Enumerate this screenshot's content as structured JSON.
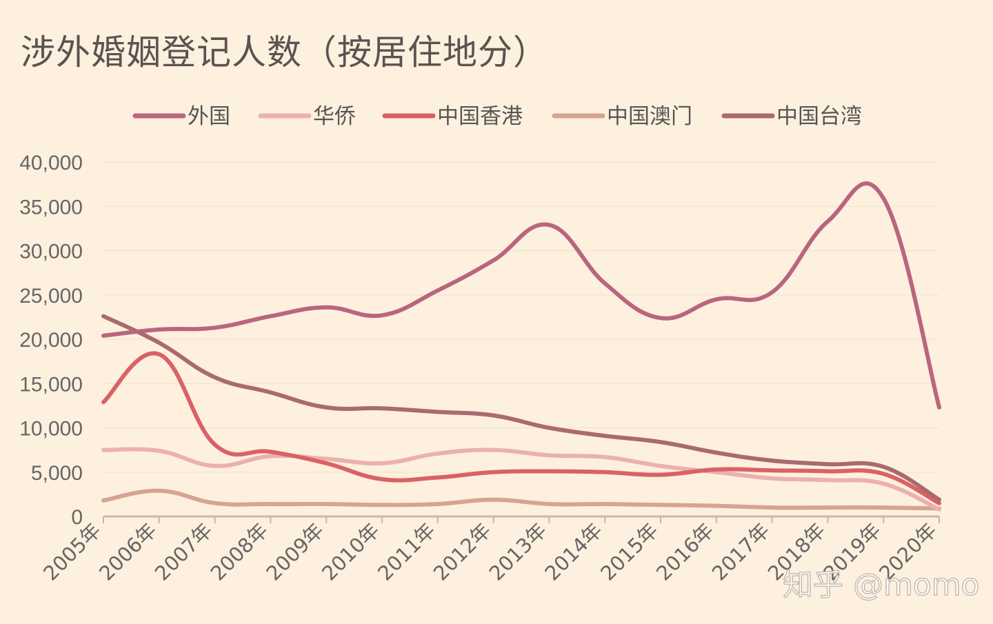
{
  "title": "涉外婚姻登记人数（按居住地分）",
  "watermark": "知乎 @momo",
  "chart_data": {
    "type": "line",
    "categories": [
      "2005年",
      "2006年",
      "2007年",
      "2008年",
      "2009年",
      "2010年",
      "2011年",
      "2012年",
      "2013年",
      "2014年",
      "2015年",
      "2016年",
      "2017年",
      "2018年",
      "2019年",
      "2020年"
    ],
    "ylim": [
      0,
      40000
    ],
    "yticks": [
      0,
      5000,
      10000,
      15000,
      20000,
      25000,
      30000,
      35000,
      40000
    ],
    "ytick_labels": [
      "0",
      "5,000",
      "10,000",
      "15,000",
      "20,000",
      "25,000",
      "30,000",
      "35,000",
      "40,000"
    ],
    "grid": true,
    "legend_position": "top",
    "smooth": true,
    "series": [
      {
        "name": "外国",
        "color": "#b8667e",
        "values": [
          20400,
          21100,
          21300,
          22600,
          23600,
          22700,
          25500,
          28900,
          32900,
          26300,
          22400,
          24500,
          25300,
          33300,
          35900,
          12300
        ]
      },
      {
        "name": "华侨",
        "color": "#ecb0ae",
        "values": [
          7500,
          7400,
          5700,
          6800,
          6500,
          6000,
          7100,
          7500,
          6900,
          6700,
          5700,
          5000,
          4300,
          4100,
          3700,
          800
        ]
      },
      {
        "name": "中国香港",
        "color": "#d96266",
        "values": [
          12900,
          18300,
          8100,
          7300,
          6000,
          4200,
          4400,
          5000,
          5100,
          5000,
          4700,
          5300,
          5200,
          5100,
          4800,
          1500
        ]
      },
      {
        "name": "中国澳门",
        "color": "#d6a493",
        "values": [
          1800,
          2900,
          1500,
          1400,
          1400,
          1300,
          1400,
          1900,
          1400,
          1400,
          1300,
          1200,
          1000,
          1000,
          1000,
          900
        ]
      },
      {
        "name": "中国台湾",
        "color": "#a86a70",
        "values": [
          22600,
          19600,
          15700,
          14000,
          12300,
          12200,
          11800,
          11400,
          10000,
          9100,
          8400,
          7200,
          6300,
          5900,
          5600,
          1900
        ]
      }
    ]
  }
}
